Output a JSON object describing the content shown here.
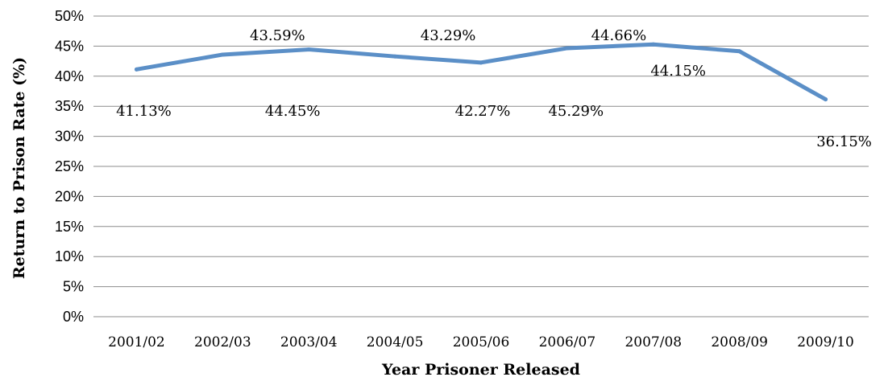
{
  "chart_data": {
    "type": "line",
    "categories": [
      "2001/02",
      "2002/03",
      "2003/04",
      "2004/05",
      "2005/06",
      "2006/07",
      "2007/08",
      "2008/09",
      "2009/10"
    ],
    "series": [
      {
        "values": [
          41.13,
          43.59,
          44.45,
          43.29,
          42.27,
          44.66,
          45.29,
          44.15,
          36.15
        ],
        "labels": [
          "41.13%",
          "43.59%",
          "44.45%",
          "43.29%",
          "42.27%",
          "44.66%",
          "45.29%",
          "44.15%",
          "36.15%"
        ],
        "color": "#5b8fc7"
      }
    ],
    "xlabel": "Year Prisoner Released",
    "ylabel": "Return to Prison Rate (%)",
    "ylim": [
      0,
      50
    ],
    "yticks": [
      "0%",
      "5%",
      "10%",
      "15%",
      "20%",
      "25%",
      "30%",
      "35%",
      "40%",
      "45%",
      "50%"
    ],
    "grid": true,
    "legend": "none"
  }
}
